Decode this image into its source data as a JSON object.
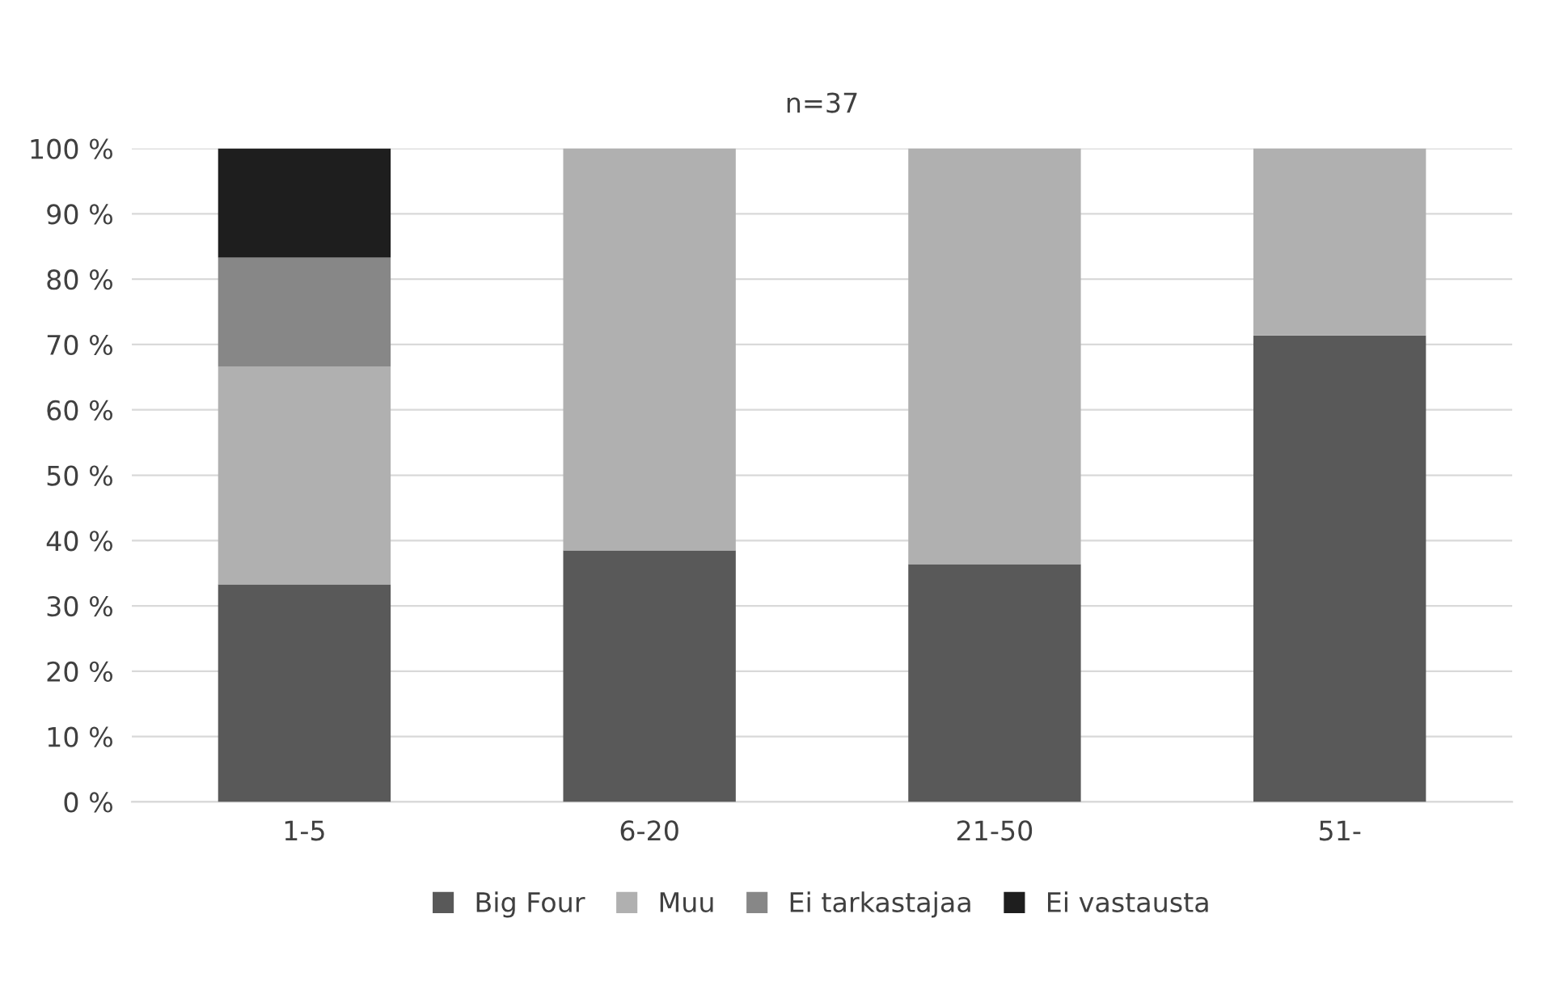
{
  "chart_data": {
    "type": "bar",
    "title": "n=37",
    "stacked": true,
    "categories": [
      "1-5",
      "6-20",
      "21-50",
      "51-"
    ],
    "series": [
      {
        "name": "Big Four",
        "color": "#595959",
        "values": [
          33.3,
          38.5,
          36.4,
          71.4
        ]
      },
      {
        "name": "Muu",
        "color": "#b0b0b0",
        "values": [
          33.3,
          61.5,
          63.6,
          28.6
        ]
      },
      {
        "name": "Ei tarkastajaa",
        "color": "#878787",
        "values": [
          16.7,
          null,
          null,
          null
        ]
      },
      {
        "name": "Ei vastausta",
        "color": "#1e1e1e",
        "values": [
          16.7,
          null,
          null,
          null
        ]
      }
    ],
    "ylim": [
      0,
      100
    ],
    "yticks": [
      {
        "value": 0,
        "label": "0 %"
      },
      {
        "value": 10,
        "label": "10 %"
      },
      {
        "value": 20,
        "label": "20 %"
      },
      {
        "value": 30,
        "label": "30 %"
      },
      {
        "value": 40,
        "label": "40 %"
      },
      {
        "value": 50,
        "label": "50 %"
      },
      {
        "value": 60,
        "label": "60 %"
      },
      {
        "value": 70,
        "label": "70 %"
      },
      {
        "value": 80,
        "label": "80 %"
      },
      {
        "value": 90,
        "label": "90 %"
      },
      {
        "value": 100,
        "label": "100 %"
      }
    ],
    "grid": "y",
    "legend": "bottom"
  }
}
